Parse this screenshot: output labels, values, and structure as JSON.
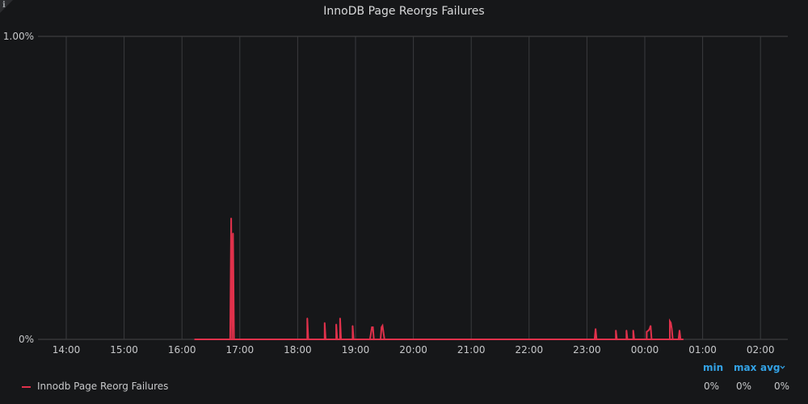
{
  "panel": {
    "title": "InnoDB Page Reorgs Failures"
  },
  "chart_data": {
    "type": "line",
    "title": "InnoDB Page Reorgs Failures",
    "xlabel": "",
    "ylabel": "",
    "ylim": [
      0,
      1.0
    ],
    "y_tick_labels": [
      "0%",
      "1.00%"
    ],
    "x_tick_labels": [
      "14:00",
      "15:00",
      "16:00",
      "17:00",
      "18:00",
      "19:00",
      "20:00",
      "21:00",
      "22:00",
      "23:00",
      "00:00",
      "01:00",
      "02:00"
    ],
    "grid": true,
    "legend_position": "bottom-left",
    "series_color": "#e0314b",
    "series": [
      {
        "name": "Innodb Page Reorg Failures",
        "x": [
          "16:13",
          "16:50",
          "16:51",
          "16:51",
          "16:52",
          "16:53",
          "16:53",
          "16:54",
          "18:10",
          "18:10",
          "18:11",
          "18:28",
          "18:28",
          "18:29",
          "18:40",
          "18:40",
          "18:41",
          "18:44",
          "18:44",
          "18:45",
          "18:57",
          "18:57",
          "18:58",
          "19:15",
          "19:17",
          "19:18",
          "19:19",
          "19:26",
          "19:27",
          "19:28",
          "19:30",
          "21:18",
          "23:08",
          "23:09",
          "23:10",
          "23:30",
          "23:30",
          "23:31",
          "23:41",
          "23:41",
          "23:42",
          "23:48",
          "23:48",
          "23:49",
          "00:02",
          "00:02",
          "00:04",
          "00:05",
          "00:06",
          "00:07",
          "00:08",
          "00:26",
          "00:26",
          "00:27",
          "00:28",
          "00:29",
          "00:35",
          "00:36",
          "00:37",
          "00:40"
        ],
        "values": [
          0,
          0,
          0.4,
          0.4,
          0,
          0.35,
          0.35,
          0,
          0,
          0.07,
          0,
          0,
          0.055,
          0,
          0,
          0.05,
          0,
          0,
          0.07,
          0,
          0,
          0.045,
          0,
          0,
          0.04,
          0.04,
          0,
          0,
          0.04,
          0.045,
          0,
          0,
          0,
          0.035,
          0,
          0,
          0.03,
          0,
          0,
          0.03,
          0,
          0,
          0.03,
          0,
          0,
          0.025,
          0.03,
          0.035,
          0.045,
          0,
          0,
          0,
          0.06,
          0.055,
          0.035,
          0,
          0,
          0.03,
          0,
          0
        ]
      }
    ],
    "gaps": [
      [
        "16:13",
        "19:35"
      ],
      [
        "21:18",
        "00:40"
      ]
    ],
    "legend_stats": {
      "headers": [
        "min",
        "max",
        "avg"
      ],
      "values": [
        "0%",
        "0%",
        "0%"
      ]
    }
  }
}
